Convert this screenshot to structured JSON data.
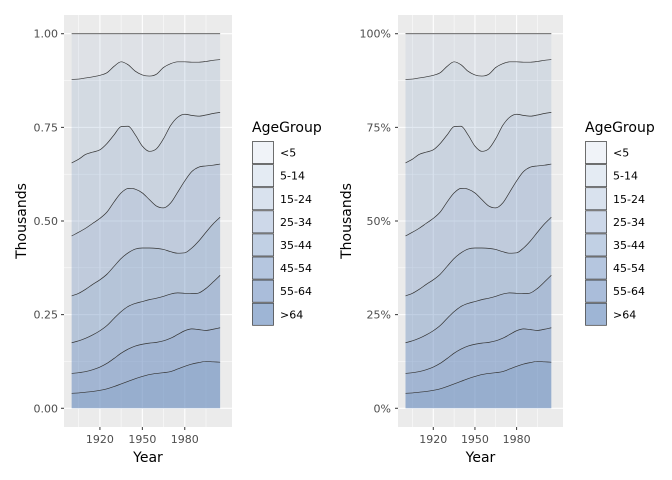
{
  "chart_data": [
    {
      "type": "area",
      "stacking": "fill",
      "xlabel": "Year",
      "ylabel": "Thousands",
      "xlim": [
        1900,
        2008
      ],
      "ylim": [
        0,
        1
      ],
      "x_ticks": [
        1920,
        1950,
        1980
      ],
      "y_ticks": [
        0,
        0.25,
        0.5,
        0.75,
        1.0
      ],
      "y_tick_labels": [
        "0.00",
        "0.25",
        "0.50",
        "0.75",
        "1.00"
      ],
      "grid": true,
      "legend": {
        "title": "AgeGroup",
        "position": "right"
      },
      "x": [
        1900,
        1905,
        1910,
        1915,
        1920,
        1925,
        1930,
        1935,
        1940,
        1945,
        1950,
        1955,
        1960,
        1965,
        1970,
        1975,
        1980,
        1985,
        1990,
        1995,
        2000,
        2005
      ],
      "series": [
        {
          "name": ">64",
          "values": [
            0.04,
            0.041,
            0.043,
            0.045,
            0.048,
            0.052,
            0.058,
            0.065,
            0.072,
            0.079,
            0.085,
            0.09,
            0.093,
            0.095,
            0.098,
            0.105,
            0.112,
            0.118,
            0.122,
            0.125,
            0.124,
            0.123
          ]
        },
        {
          "name": "55-64",
          "values": [
            0.093,
            0.095,
            0.098,
            0.103,
            0.11,
            0.12,
            0.133,
            0.147,
            0.158,
            0.166,
            0.171,
            0.174,
            0.176,
            0.18,
            0.187,
            0.197,
            0.207,
            0.212,
            0.21,
            0.208,
            0.211,
            0.215
          ]
        },
        {
          "name": "45-54",
          "values": [
            0.175,
            0.18,
            0.187,
            0.196,
            0.207,
            0.221,
            0.24,
            0.258,
            0.272,
            0.28,
            0.285,
            0.29,
            0.294,
            0.299,
            0.305,
            0.308,
            0.307,
            0.306,
            0.308,
            0.32,
            0.337,
            0.355
          ]
        },
        {
          "name": "35-44",
          "values": [
            0.3,
            0.307,
            0.318,
            0.331,
            0.343,
            0.358,
            0.379,
            0.4,
            0.415,
            0.425,
            0.428,
            0.428,
            0.427,
            0.424,
            0.418,
            0.414,
            0.415,
            0.428,
            0.447,
            0.47,
            0.492,
            0.51
          ]
        },
        {
          "name": "25-34",
          "values": [
            0.46,
            0.47,
            0.481,
            0.494,
            0.507,
            0.524,
            0.551,
            0.575,
            0.587,
            0.585,
            0.575,
            0.557,
            0.54,
            0.535,
            0.548,
            0.577,
            0.607,
            0.632,
            0.644,
            0.647,
            0.649,
            0.652
          ]
        },
        {
          "name": "15-24",
          "values": [
            0.655,
            0.665,
            0.678,
            0.684,
            0.69,
            0.707,
            0.73,
            0.752,
            0.753,
            0.73,
            0.7,
            0.686,
            0.693,
            0.72,
            0.755,
            0.777,
            0.785,
            0.782,
            0.78,
            0.783,
            0.787,
            0.79
          ]
        },
        {
          "name": "5-14",
          "values": [
            0.878,
            0.879,
            0.882,
            0.885,
            0.889,
            0.896,
            0.913,
            0.925,
            0.917,
            0.9,
            0.89,
            0.887,
            0.892,
            0.91,
            0.92,
            0.925,
            0.925,
            0.924,
            0.924,
            0.926,
            0.929,
            0.931
          ]
        },
        {
          "name": "<5",
          "values": [
            1,
            1,
            1,
            1,
            1,
            1,
            1,
            1,
            1,
            1,
            1,
            1,
            1,
            1,
            1,
            1,
            1,
            1,
            1,
            1,
            1,
            1
          ]
        }
      ]
    },
    {
      "type": "area",
      "stacking": "fill",
      "xlabel": "Year",
      "ylabel": "Thousands",
      "xlim": [
        1900,
        2008
      ],
      "ylim": [
        0,
        1
      ],
      "x_ticks": [
        1920,
        1950,
        1980
      ],
      "y_ticks": [
        0,
        0.25,
        0.5,
        0.75,
        1.0
      ],
      "y_tick_labels": [
        "0%",
        "25%",
        "50%",
        "75%",
        "100%"
      ],
      "grid": true,
      "legend": {
        "title": "AgeGroup",
        "position": "right"
      },
      "x": [
        1900,
        1905,
        1910,
        1915,
        1920,
        1925,
        1930,
        1935,
        1940,
        1945,
        1950,
        1955,
        1960,
        1965,
        1970,
        1975,
        1980,
        1985,
        1990,
        1995,
        2000,
        2005
      ],
      "series": [
        {
          "name": ">64",
          "values": [
            0.04,
            0.041,
            0.043,
            0.045,
            0.048,
            0.052,
            0.058,
            0.065,
            0.072,
            0.079,
            0.085,
            0.09,
            0.093,
            0.095,
            0.098,
            0.105,
            0.112,
            0.118,
            0.122,
            0.125,
            0.124,
            0.123
          ]
        },
        {
          "name": "55-64",
          "values": [
            0.093,
            0.095,
            0.098,
            0.103,
            0.11,
            0.12,
            0.133,
            0.147,
            0.158,
            0.166,
            0.171,
            0.174,
            0.176,
            0.18,
            0.187,
            0.197,
            0.207,
            0.212,
            0.21,
            0.208,
            0.211,
            0.215
          ]
        },
        {
          "name": "45-54",
          "values": [
            0.175,
            0.18,
            0.187,
            0.196,
            0.207,
            0.221,
            0.24,
            0.258,
            0.272,
            0.28,
            0.285,
            0.29,
            0.294,
            0.299,
            0.305,
            0.308,
            0.307,
            0.306,
            0.308,
            0.32,
            0.337,
            0.355
          ]
        },
        {
          "name": "35-44",
          "values": [
            0.3,
            0.307,
            0.318,
            0.331,
            0.343,
            0.358,
            0.379,
            0.4,
            0.415,
            0.425,
            0.428,
            0.428,
            0.427,
            0.424,
            0.418,
            0.414,
            0.415,
            0.428,
            0.447,
            0.47,
            0.492,
            0.51
          ]
        },
        {
          "name": "25-34",
          "values": [
            0.46,
            0.47,
            0.481,
            0.494,
            0.507,
            0.524,
            0.551,
            0.575,
            0.587,
            0.585,
            0.575,
            0.557,
            0.54,
            0.535,
            0.548,
            0.577,
            0.607,
            0.632,
            0.644,
            0.647,
            0.649,
            0.652
          ]
        },
        {
          "name": "15-24",
          "values": [
            0.655,
            0.665,
            0.678,
            0.684,
            0.69,
            0.707,
            0.73,
            0.752,
            0.753,
            0.73,
            0.7,
            0.686,
            0.693,
            0.72,
            0.755,
            0.777,
            0.785,
            0.782,
            0.78,
            0.783,
            0.787,
            0.79
          ]
        },
        {
          "name": "5-14",
          "values": [
            0.878,
            0.879,
            0.882,
            0.885,
            0.889,
            0.896,
            0.913,
            0.925,
            0.917,
            0.9,
            0.89,
            0.887,
            0.892,
            0.91,
            0.92,
            0.925,
            0.925,
            0.924,
            0.924,
            0.926,
            0.929,
            0.931
          ]
        },
        {
          "name": "<5",
          "values": [
            1,
            1,
            1,
            1,
            1,
            1,
            1,
            1,
            1,
            1,
            1,
            1,
            1,
            1,
            1,
            1,
            1,
            1,
            1,
            1,
            1,
            1
          ]
        }
      ]
    }
  ],
  "colors": {
    "panel_background": "#ebebeb",
    "grid": "#ffffff",
    "band_fill": "#6c8ebf",
    "outline": "#333333",
    "text": "#000000",
    "tick_text": "#4d4d4d"
  }
}
